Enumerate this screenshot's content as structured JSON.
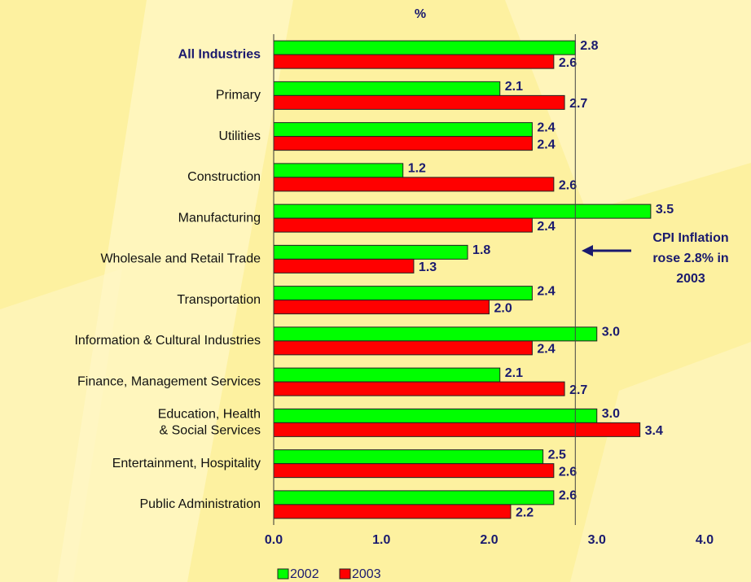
{
  "chart_data": {
    "type": "bar",
    "orientation": "horizontal",
    "x_axis_label": "%",
    "categories": [
      "All Industries",
      "Primary",
      "Utilities",
      "Construction",
      "Manufacturing",
      "Wholesale and Retail Trade",
      "Transportation",
      "Information & Cultural Industries",
      "Finance, Management Services",
      [
        "Education, Health",
        "& Social Services"
      ],
      "Entertainment, Hospitality",
      "Public Administration"
    ],
    "series": [
      {
        "name": "2002",
        "color": "#00ff00",
        "values": [
          2.8,
          2.1,
          2.4,
          1.2,
          3.5,
          1.8,
          2.4,
          3.0,
          2.1,
          3.0,
          2.5,
          2.6
        ],
        "value_labels": [
          "2.8",
          "2.1",
          "2.4",
          "1.2",
          "3.5",
          "1.8",
          "2.4",
          "3.0",
          "2.1",
          "3.0",
          "2.5",
          "2.6"
        ]
      },
      {
        "name": "2003",
        "color": "#ff0000",
        "values": [
          2.6,
          2.7,
          2.4,
          2.6,
          2.4,
          1.3,
          2.0,
          2.4,
          2.7,
          3.4,
          2.6,
          2.2
        ],
        "value_labels": [
          "2.6",
          "2.7",
          "2.4",
          "2.6",
          "2.4",
          "1.3",
          "2.0",
          "2.4",
          "2.7",
          "3.4",
          "2.6",
          "2.2"
        ]
      }
    ],
    "xlim": [
      0,
      4
    ],
    "xticks": [
      {
        "value": 0,
        "label": "0.0"
      },
      {
        "value": 1,
        "label": "1.0"
      },
      {
        "value": 2,
        "label": "2.0"
      },
      {
        "value": 3,
        "label": "3.0"
      },
      {
        "value": 4,
        "label": "4.0"
      }
    ],
    "reference_line": 2.8,
    "annotation": [
      "CPI Inflation",
      "rose 2.8% in",
      "2003"
    ],
    "grid": false,
    "legend": "bottom"
  }
}
